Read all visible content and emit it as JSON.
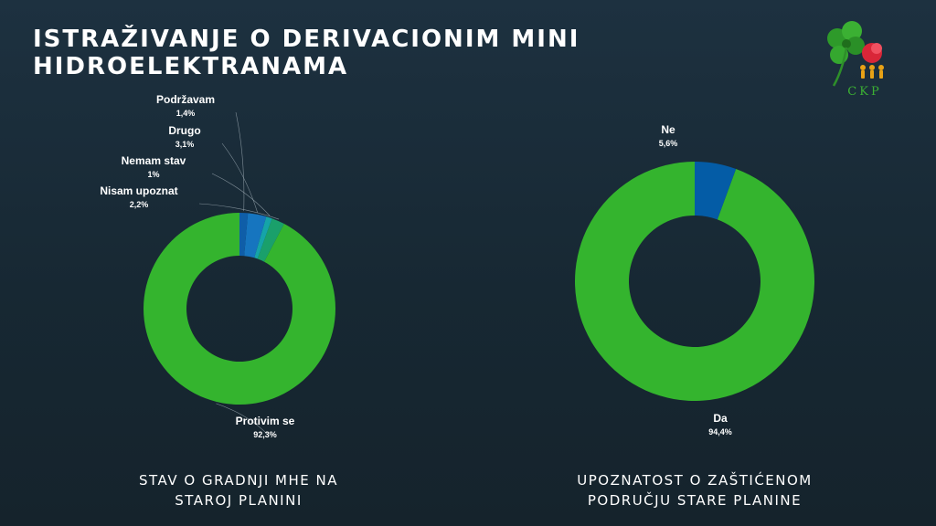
{
  "title": {
    "line1": "ISTRAŽIVANJE O DERIVACIONIM MINI",
    "line2": "HIDROELEKTRANAMA"
  },
  "logo": {
    "text": "CKP",
    "icon": "clover-logo-icon"
  },
  "chart_data": [
    {
      "type": "pie",
      "variant": "donut",
      "caption": [
        "STAV O GRADNJI MHE NA",
        "STAROJ PLANINI"
      ],
      "slices": [
        {
          "label": "Protivim se",
          "value": 92.3,
          "display": "92,3%",
          "color": "#34b42e"
        },
        {
          "label": "Nisam upoznat",
          "value": 2.2,
          "display": "2,2%",
          "color": "#1aa06b"
        },
        {
          "label": "Nemam stav",
          "value": 1,
          "display": "1%",
          "color": "#15a4a8"
        },
        {
          "label": "Drugo",
          "value": 3.1,
          "display": "3,1%",
          "color": "#1675bf"
        },
        {
          "label": "Podržavam",
          "value": 1.4,
          "display": "1,4%",
          "color": "#0f5ea8"
        }
      ]
    },
    {
      "type": "pie",
      "variant": "donut",
      "caption": [
        "UPOZNATOST O ZAŠTIĆENOM",
        "PODRUČJU STARE PLANINE"
      ],
      "slices": [
        {
          "label": "Da",
          "value": 94.4,
          "display": "94,4%",
          "color": "#34b42e"
        },
        {
          "label": "Ne",
          "value": 5.6,
          "display": "5,6%",
          "color": "#045ca6"
        }
      ]
    }
  ]
}
